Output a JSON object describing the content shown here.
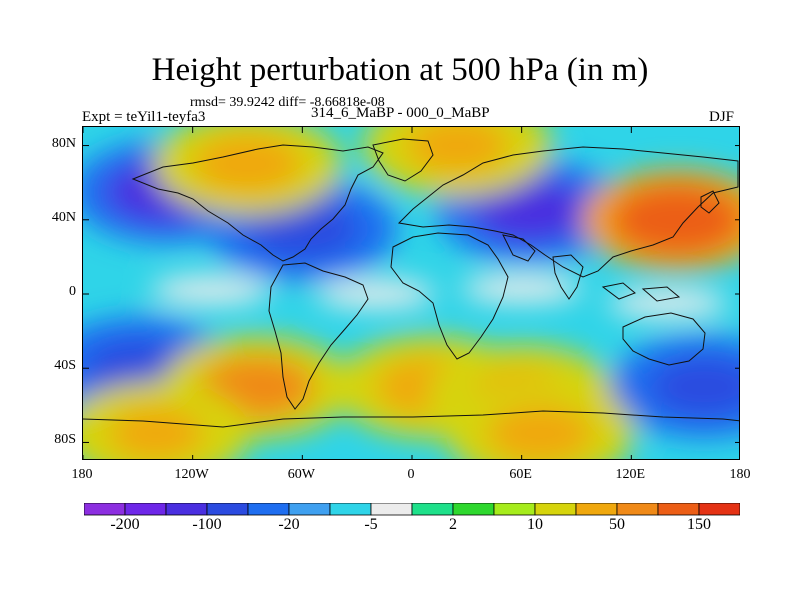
{
  "figure": {
    "title": "Height perturbation at 500 hPa (in m)",
    "stats": "rmsd= 39.9242 diff= -8.66818e-08",
    "left_label": "Expt = teYil1-teyfa3",
    "center_label": "314_6_MaBP - 000_0_MaBP",
    "right_label": "DJF"
  },
  "axes": {
    "x_ticks": [
      "180",
      "120W",
      "60W",
      "0",
      "60E",
      "120E",
      "180"
    ],
    "y_ticks": [
      "80N",
      "40N",
      "0",
      "40S",
      "80S"
    ],
    "x_values": [
      -180,
      -120,
      -60,
      0,
      60,
      120,
      180
    ],
    "y_values": [
      80,
      40,
      0,
      -40,
      -80
    ]
  },
  "colorbar": {
    "colors": [
      "#8c2ee0",
      "#6e27e8",
      "#4a2fe0",
      "#2b4be0",
      "#1f6ef0",
      "#3fa0f0",
      "#2fd4e8",
      "#ececec",
      "#1ee08a",
      "#2ed82e",
      "#a6ec1c",
      "#d6d40c",
      "#f0a80e",
      "#f08a18",
      "#ec5e16",
      "#e43214"
    ],
    "labels": [
      "-200",
      "-100",
      "-20",
      "-5",
      "2",
      "10",
      "50",
      "150"
    ]
  },
  "map_data": {
    "type": "filled-contour-map",
    "variable": "Height perturbation at 500 hPa",
    "units": "m",
    "projection": "cylindrical-equidistant",
    "lon_range": [
      -180,
      180
    ],
    "lat_range": [
      -90,
      90
    ],
    "features": [
      {
        "lon": -135,
        "lat": 55,
        "value": -120
      },
      {
        "lon": -60,
        "lat": 35,
        "value": -100
      },
      {
        "lon": 65,
        "lat": 45,
        "value": -110
      },
      {
        "lon": 145,
        "lat": 40,
        "value": 160
      },
      {
        "lon": -90,
        "lat": 70,
        "value": 90
      },
      {
        "lon": 25,
        "lat": 80,
        "value": 70
      },
      {
        "lon": -150,
        "lat": -40,
        "value": -80
      },
      {
        "lon": -85,
        "lat": -50,
        "value": 110
      },
      {
        "lon": 10,
        "lat": -50,
        "value": 90
      },
      {
        "lon": 60,
        "lat": -55,
        "value": 60
      },
      {
        "lon": 160,
        "lat": -50,
        "value": -90
      },
      {
        "lon": 70,
        "lat": -75,
        "value": 80
      },
      {
        "lon": -140,
        "lat": -75,
        "value": 50
      }
    ]
  }
}
